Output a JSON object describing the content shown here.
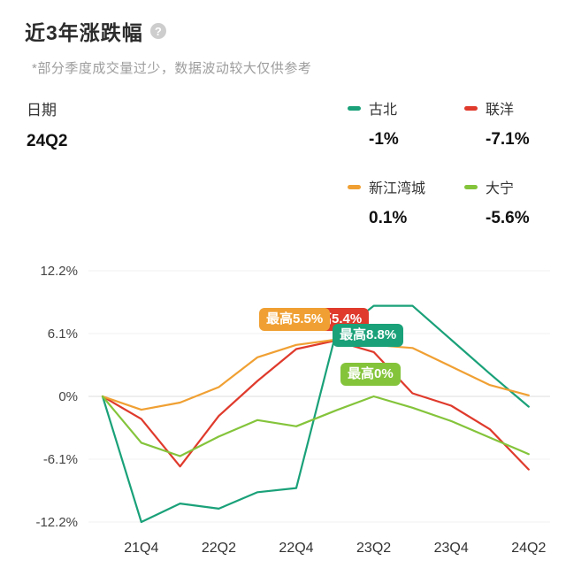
{
  "header": {
    "title": "近3年涨跌幅",
    "help_icon": "?",
    "note": "*部分季度成交量过少，数据波动较大仅供参考"
  },
  "legend": {
    "date_label": "日期",
    "date_value": "24Q2",
    "series": [
      {
        "name": "古北",
        "value": "-1%",
        "color": "#1aa179"
      },
      {
        "name": "联洋",
        "value": "-7.1%",
        "color": "#df3a2c"
      },
      {
        "name": "新江湾城",
        "value": "0.1%",
        "color": "#f0a033"
      },
      {
        "name": "大宁",
        "value": "-5.6%",
        "color": "#84c43b"
      }
    ]
  },
  "chart_data": {
    "type": "line",
    "title": "近3年涨跌幅",
    "x": [
      "21Q3",
      "21Q4",
      "22Q1",
      "22Q2",
      "22Q3",
      "22Q4",
      "23Q1",
      "23Q2",
      "23Q3",
      "23Q4",
      "24Q1",
      "24Q2"
    ],
    "x_tick_labels": [
      "21Q4",
      "22Q2",
      "22Q4",
      "23Q2",
      "23Q4",
      "24Q2"
    ],
    "y_ticks": [
      12.2,
      6.1,
      0,
      -6.1,
      -12.2
    ],
    "y_tick_labels": [
      "12.2%",
      "6.1%",
      "0%",
      "-6.1%",
      "-12.2%"
    ],
    "ylim": [
      -12.2,
      12.2
    ],
    "unit": "%",
    "grid": "horizontal-light",
    "legend_position": "top-right",
    "series": [
      {
        "name": "古北",
        "color": "#1aa179",
        "values": [
          0,
          -12.2,
          -10.4,
          -10.9,
          -9.3,
          -8.9,
          5.8,
          8.8,
          8.8,
          5.5,
          2.2,
          -1.0
        ]
      },
      {
        "name": "联洋",
        "color": "#df3a2c",
        "values": [
          0,
          -2.2,
          -6.8,
          -1.9,
          1.5,
          4.6,
          5.4,
          4.3,
          0.3,
          -0.9,
          -3.2,
          -7.1
        ]
      },
      {
        "name": "新江湾城",
        "color": "#f0a033",
        "values": [
          0,
          -1.3,
          -0.6,
          0.9,
          3.8,
          5.0,
          5.5,
          5.0,
          4.7,
          2.9,
          1.1,
          0.1
        ]
      },
      {
        "name": "大宁",
        "color": "#84c43b",
        "values": [
          0,
          -4.5,
          -5.8,
          -3.9,
          -2.3,
          -2.9,
          -1.4,
          0,
          -1.1,
          -2.4,
          -4.0,
          -5.6
        ]
      }
    ],
    "annotations": [
      {
        "series": "联洋",
        "label": "最高5.4%",
        "color": "#df3a2c",
        "value": 5.4,
        "at": "23Q1"
      },
      {
        "series": "古北",
        "label": "最高8.8%",
        "color": "#1aa179",
        "value": 8.8,
        "at": "23Q2"
      },
      {
        "series": "大宁",
        "label": "最高0%",
        "color": "#84c43b",
        "value": 0,
        "at": "23Q2"
      },
      {
        "series": "新江湾城",
        "label": "最高5.5%",
        "color": "#f0a033",
        "value": 5.5,
        "at": "23Q1"
      }
    ]
  }
}
